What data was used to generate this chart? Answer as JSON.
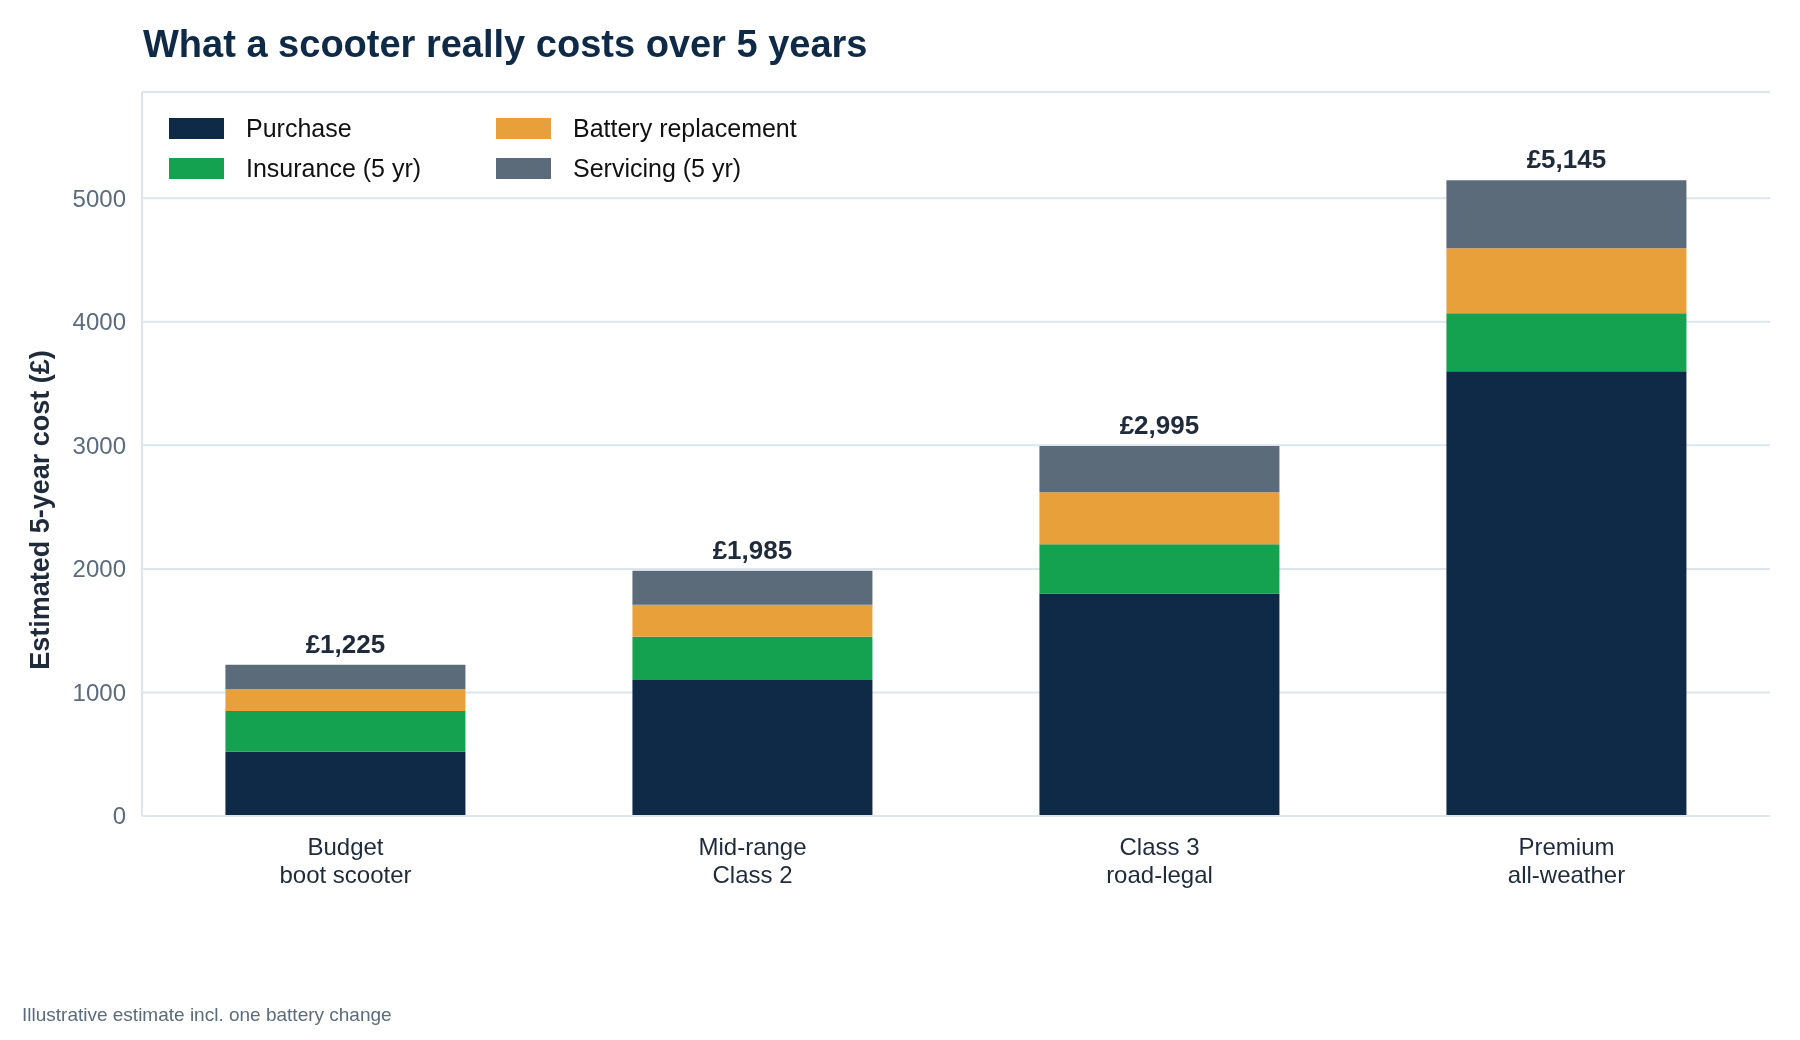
{
  "chart_data": {
    "type": "bar",
    "stacked": true,
    "title": "What a scooter really costs over 5 years",
    "ylabel": "Estimated 5-year cost (£)",
    "categories": [
      "Budget\nboot scooter",
      "Mid-range\nClass 2",
      "Class 3\nroad-legal",
      "Premium\nall-weather"
    ],
    "series": [
      {
        "name": "Purchase",
        "color": "#0f2a47",
        "values": [
          520,
          1100,
          1800,
          3600
        ]
      },
      {
        "name": "Insurance (5 yr)",
        "color": "#14a150",
        "values": [
          330,
          350,
          400,
          470
        ]
      },
      {
        "name": "Battery replacement",
        "color": "#e8a03b",
        "values": [
          175,
          260,
          420,
          525
        ]
      },
      {
        "name": "Servicing (5 yr)",
        "color": "#5b6b7a",
        "values": [
          200,
          275,
          375,
          550
        ]
      }
    ],
    "totals": [
      "£1,225",
      "£1,985",
      "£2,995",
      "£5,145"
    ],
    "ylim": [
      0,
      5860
    ],
    "yticks": [
      0,
      1000,
      2000,
      3000,
      4000,
      5000
    ],
    "grid": "y",
    "legend": "top left",
    "annotations": [
      "Illustrative estimate incl. one battery change"
    ]
  }
}
